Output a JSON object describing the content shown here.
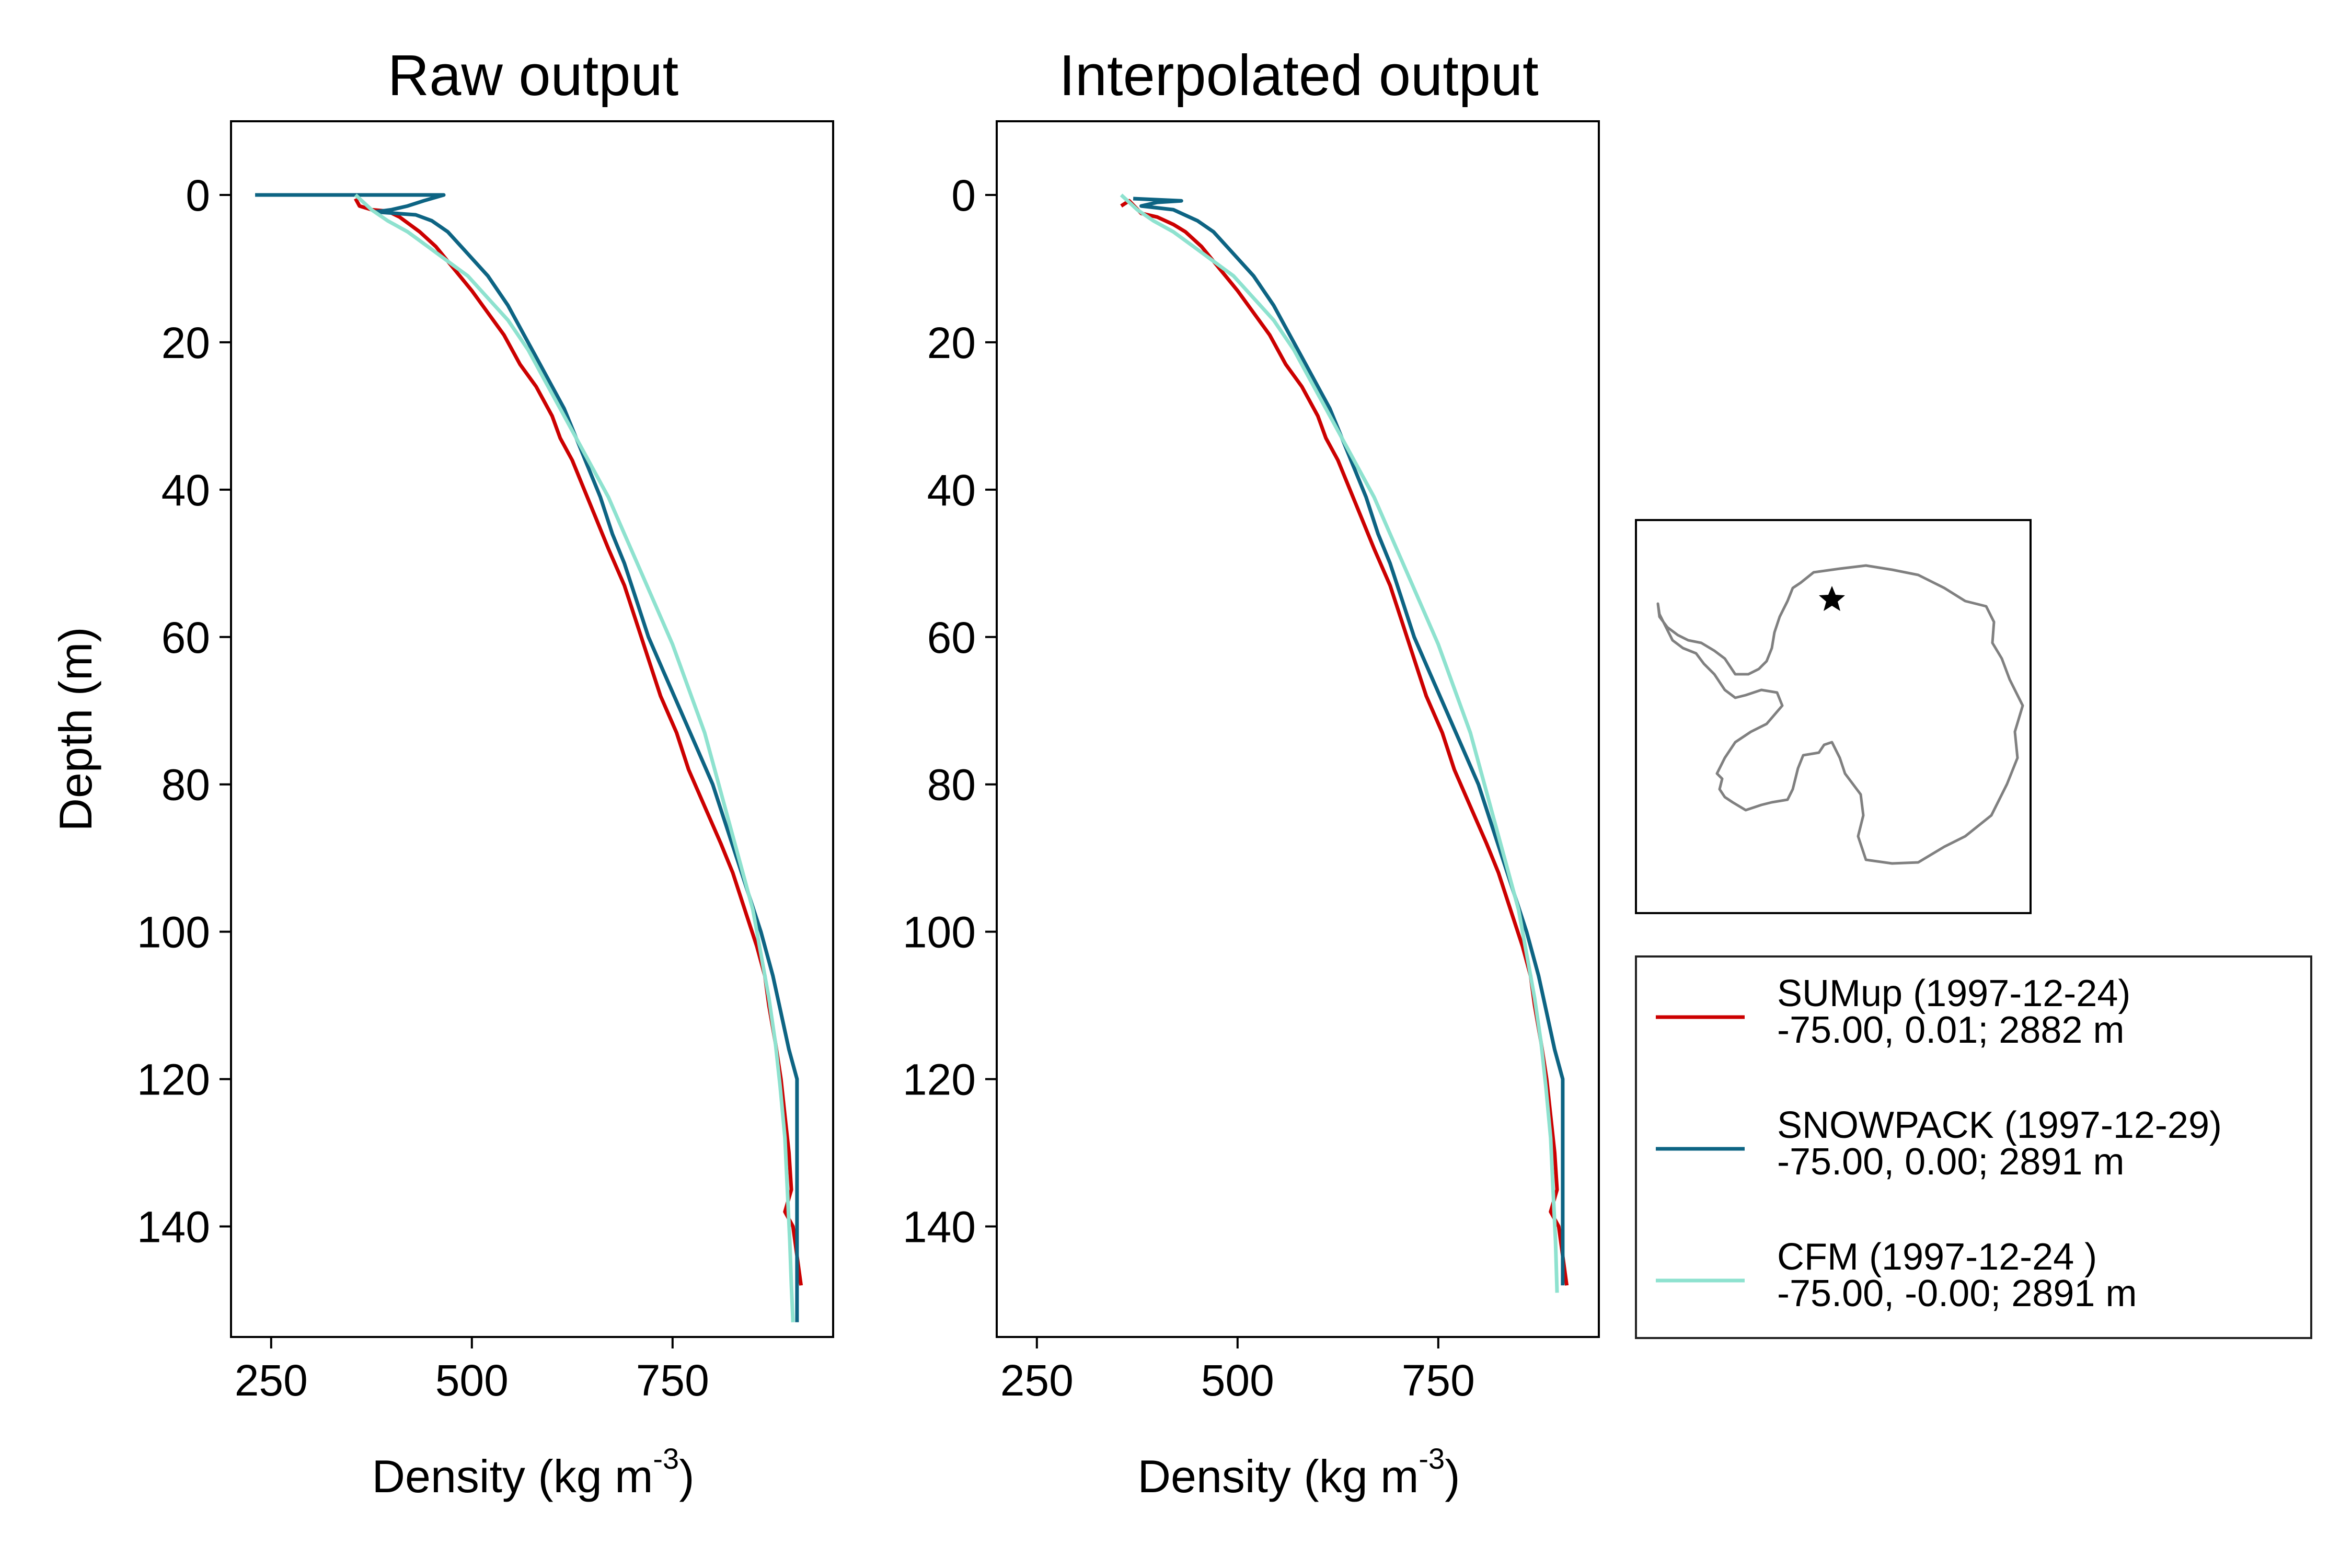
{
  "chart_data": [
    {
      "type": "line",
      "title": "Raw output",
      "xlabel": "Density (kg m",
      "xlabel_sup": "-3",
      "xlabel_end": ")",
      "ylabel": "Depth (m)",
      "xlim": [
        200,
        950
      ],
      "ylim": [
        155,
        -10
      ],
      "y_inverted": true,
      "xticks": [
        250,
        500,
        750
      ],
      "xtick_labels": [
        "250",
        "500",
        "750"
      ],
      "yticks": [
        0,
        20,
        40,
        60,
        80,
        100,
        120,
        140
      ],
      "ytick_labels": [
        "0",
        "20",
        "40",
        "60",
        "80",
        "100",
        "120",
        "140"
      ],
      "grid": false,
      "series": [
        {
          "name": "SUMup",
          "color": "#cc0000",
          "points": [
            [
              355,
              0.5
            ],
            [
              360,
              1.5
            ],
            [
              375,
              2
            ],
            [
              395,
              2.2
            ],
            [
              410,
              3
            ],
            [
              425,
              4.2
            ],
            [
              435,
              5
            ],
            [
              455,
              7
            ],
            [
              470,
              9
            ],
            [
              485,
              11
            ],
            [
              500,
              13
            ],
            [
              520,
              16
            ],
            [
              540,
              19
            ],
            [
              560,
              23
            ],
            [
              580,
              26
            ],
            [
              600,
              30
            ],
            [
              610,
              33
            ],
            [
              625,
              36
            ],
            [
              640,
              40
            ],
            [
              655,
              44
            ],
            [
              670,
              48
            ],
            [
              690,
              53
            ],
            [
              705,
              58
            ],
            [
              720,
              63
            ],
            [
              735,
              68
            ],
            [
              755,
              73
            ],
            [
              770,
              78
            ],
            [
              790,
              83
            ],
            [
              810,
              88
            ],
            [
              825,
              92
            ],
            [
              840,
              97
            ],
            [
              855,
              102
            ],
            [
              865,
              106
            ],
            [
              870,
              110
            ],
            [
              878,
              115
            ],
            [
              885,
              120
            ],
            [
              890,
              125
            ],
            [
              895,
              130
            ],
            [
              898,
              135
            ],
            [
              890,
              138
            ],
            [
              900,
              140
            ],
            [
              905,
              144
            ],
            [
              910,
              148
            ]
          ]
        },
        {
          "name": "SNOWPACK",
          "color": "#0d6483",
          "points": [
            [
              230,
              0
            ],
            [
              300,
              0
            ],
            [
              360,
              0
            ],
            [
              400,
              0
            ],
            [
              430,
              0
            ],
            [
              465,
              0
            ],
            [
              440,
              0.8
            ],
            [
              420,
              1.5
            ],
            [
              400,
              2
            ],
            [
              380,
              2.3
            ],
            [
              430,
              2.7
            ],
            [
              450,
              3.5
            ],
            [
              470,
              5
            ],
            [
              495,
              8
            ],
            [
              520,
              11
            ],
            [
              545,
              15
            ],
            [
              565,
              19
            ],
            [
              580,
              22
            ],
            [
              600,
              26
            ],
            [
              615,
              29
            ],
            [
              630,
              33
            ],
            [
              645,
              37
            ],
            [
              660,
              41
            ],
            [
              675,
              46
            ],
            [
              690,
              50
            ],
            [
              705,
              55
            ],
            [
              720,
              60
            ],
            [
              740,
              65
            ],
            [
              760,
              70
            ],
            [
              780,
              75
            ],
            [
              800,
              80
            ],
            [
              815,
              85
            ],
            [
              830,
              90
            ],
            [
              845,
              95
            ],
            [
              860,
              100
            ],
            [
              875,
              106
            ],
            [
              885,
              111
            ],
            [
              895,
              116
            ],
            [
              905,
              120
            ],
            [
              905,
              130
            ],
            [
              905,
              140
            ],
            [
              905,
              150
            ],
            [
              905,
              153
            ]
          ]
        },
        {
          "name": "CFM",
          "color": "#8ee2cf",
          "points": [
            [
              355,
              0
            ],
            [
              375,
              2
            ],
            [
              395,
              3.5
            ],
            [
              420,
              5
            ],
            [
              445,
              7
            ],
            [
              470,
              9
            ],
            [
              495,
              11
            ],
            [
              520,
              14
            ],
            [
              545,
              17
            ],
            [
              570,
              21
            ],
            [
              590,
              25
            ],
            [
              610,
              29
            ],
            [
              630,
              33
            ],
            [
              650,
              37
            ],
            [
              670,
              41
            ],
            [
              690,
              46
            ],
            [
              710,
              51
            ],
            [
              730,
              56
            ],
            [
              750,
              61
            ],
            [
              770,
              67
            ],
            [
              790,
              73
            ],
            [
              805,
              79
            ],
            [
              820,
              85
            ],
            [
              835,
              91
            ],
            [
              850,
              97
            ],
            [
              860,
              103
            ],
            [
              870,
              109
            ],
            [
              878,
              115
            ],
            [
              884,
              121
            ],
            [
              890,
              128
            ],
            [
              893,
              135
            ],
            [
              896,
              142
            ],
            [
              898,
              148
            ],
            [
              900,
              153
            ]
          ]
        }
      ]
    },
    {
      "type": "line",
      "title": "Interpolated output",
      "xlabel": "Density (kg m",
      "xlabel_sup": "-3",
      "xlabel_end": ")",
      "xlim": [
        200,
        950
      ],
      "ylim": [
        155,
        -10
      ],
      "y_inverted": true,
      "xticks": [
        250,
        500,
        750
      ],
      "xtick_labels": [
        "250",
        "500",
        "750"
      ],
      "yticks": [
        0,
        20,
        40,
        60,
        80,
        100,
        120,
        140
      ],
      "ytick_labels": [
        "0",
        "20",
        "40",
        "60",
        "80",
        "100",
        "120",
        "140"
      ],
      "grid": false,
      "series": [
        {
          "name": "SUMup",
          "color": "#cc0000",
          "points": [
            [
              355,
              1.5
            ],
            [
              365,
              0.8
            ],
            [
              380,
              2.5
            ],
            [
              400,
              3
            ],
            [
              420,
              4
            ],
            [
              435,
              5
            ],
            [
              455,
              7
            ],
            [
              470,
              9
            ],
            [
              485,
              11
            ],
            [
              500,
              13
            ],
            [
              520,
              16
            ],
            [
              540,
              19
            ],
            [
              560,
              23
            ],
            [
              580,
              26
            ],
            [
              600,
              30
            ],
            [
              610,
              33
            ],
            [
              625,
              36
            ],
            [
              640,
              40
            ],
            [
              655,
              44
            ],
            [
              670,
              48
            ],
            [
              690,
              53
            ],
            [
              705,
              58
            ],
            [
              720,
              63
            ],
            [
              735,
              68
            ],
            [
              755,
              73
            ],
            [
              770,
              78
            ],
            [
              790,
              83
            ],
            [
              810,
              88
            ],
            [
              825,
              92
            ],
            [
              840,
              97
            ],
            [
              855,
              102
            ],
            [
              865,
              106
            ],
            [
              870,
              110
            ],
            [
              878,
              115
            ],
            [
              885,
              120
            ],
            [
              890,
              125
            ],
            [
              895,
              130
            ],
            [
              898,
              135
            ],
            [
              890,
              138
            ],
            [
              900,
              140
            ],
            [
              905,
              144
            ],
            [
              910,
              148
            ]
          ]
        },
        {
          "name": "SNOWPACK",
          "color": "#0d6483",
          "points": [
            [
              370,
              0.5
            ],
            [
              430,
              0.8
            ],
            [
              400,
              1
            ],
            [
              380,
              1.5
            ],
            [
              420,
              2
            ],
            [
              450,
              3.5
            ],
            [
              470,
              5
            ],
            [
              495,
              8
            ],
            [
              520,
              11
            ],
            [
              545,
              15
            ],
            [
              565,
              19
            ],
            [
              580,
              22
            ],
            [
              600,
              26
            ],
            [
              615,
              29
            ],
            [
              630,
              33
            ],
            [
              645,
              37
            ],
            [
              660,
              41
            ],
            [
              675,
              46
            ],
            [
              690,
              50
            ],
            [
              705,
              55
            ],
            [
              720,
              60
            ],
            [
              740,
              65
            ],
            [
              760,
              70
            ],
            [
              780,
              75
            ],
            [
              800,
              80
            ],
            [
              815,
              85
            ],
            [
              830,
              90
            ],
            [
              845,
              95
            ],
            [
              860,
              100
            ],
            [
              875,
              106
            ],
            [
              885,
              111
            ],
            [
              895,
              116
            ],
            [
              905,
              120
            ],
            [
              905,
              130
            ],
            [
              905,
              140
            ],
            [
              905,
              148
            ]
          ]
        },
        {
          "name": "CFM",
          "color": "#8ee2cf",
          "points": [
            [
              355,
              0
            ],
            [
              375,
              2
            ],
            [
              395,
              3.5
            ],
            [
              420,
              5
            ],
            [
              445,
              7
            ],
            [
              470,
              9
            ],
            [
              495,
              11
            ],
            [
              520,
              14
            ],
            [
              545,
              17
            ],
            [
              570,
              21
            ],
            [
              590,
              25
            ],
            [
              610,
              29
            ],
            [
              630,
              33
            ],
            [
              650,
              37
            ],
            [
              670,
              41
            ],
            [
              690,
              46
            ],
            [
              710,
              51
            ],
            [
              730,
              56
            ],
            [
              750,
              61
            ],
            [
              770,
              67
            ],
            [
              790,
              73
            ],
            [
              805,
              79
            ],
            [
              820,
              85
            ],
            [
              835,
              91
            ],
            [
              850,
              97
            ],
            [
              860,
              103
            ],
            [
              870,
              109
            ],
            [
              878,
              115
            ],
            [
              884,
              121
            ],
            [
              890,
              128
            ],
            [
              893,
              135
            ],
            [
              896,
              142
            ],
            [
              898,
              149
            ]
          ]
        }
      ]
    }
  ],
  "legend": {
    "placement": "right",
    "entries": [
      {
        "line1": "SUMup (1997-12-24)",
        "line2": "-75.00, 0.01; 2882 m",
        "color": "#cc0000"
      },
      {
        "line1": "SNOWPACK (1997-12-29)",
        "line2": "-75.00, 0.00; 2891 m",
        "color": "#0d6483"
      },
      {
        "line1": "CFM (1997-12-24 )",
        "line2": "-75.00, -0.00; 2891 m",
        "color": "#8ee2cf"
      }
    ]
  },
  "inset_map": {
    "outline_color": "#808080",
    "marker": "star"
  }
}
